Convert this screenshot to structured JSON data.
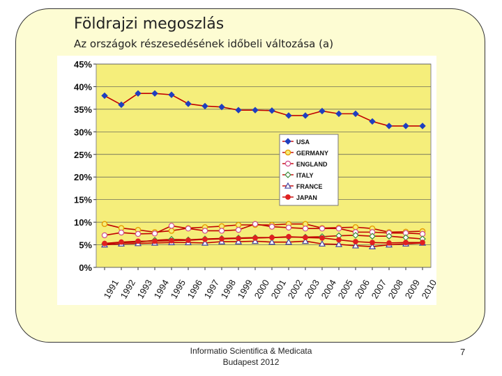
{
  "slide": {
    "title": "Földrajzi megoszlás",
    "subtitle": "Az országok részesedésének időbeli változása (a)",
    "footer_line1": "Informatio Scientifica & Medicata",
    "footer_line2": "Budapest 2012",
    "page_number": "7"
  },
  "colors": {
    "card_bg": "#fdfcd3",
    "plot_bg": "#f5ee7b",
    "frame_bg": "#ffffff",
    "line": "#c00000"
  },
  "chart_data": {
    "type": "line",
    "title": "",
    "xlabel": "",
    "ylabel": "",
    "ylim": [
      0,
      45
    ],
    "y_ticks": [
      "0%",
      "5%",
      "10%",
      "15%",
      "20%",
      "25%",
      "30%",
      "35%",
      "40%",
      "45%"
    ],
    "y_tick_values": [
      0,
      5,
      10,
      15,
      20,
      25,
      30,
      35,
      40,
      45
    ],
    "categories": [
      "1991",
      "1992",
      "1993",
      "1994",
      "1995",
      "1996",
      "1997",
      "1998",
      "1999",
      "2000",
      "2001",
      "2002",
      "2003",
      "2004",
      "2005",
      "2006",
      "2007",
      "2008",
      "2009",
      "2010"
    ],
    "grid": true,
    "legend_position": "right-middle",
    "series": [
      {
        "name": "USA",
        "marker": "diamond-filled",
        "marker_color": "#1f3fbf",
        "values": [
          38,
          36,
          38.5,
          38.5,
          38.2,
          36.2,
          35.7,
          35.5,
          34.8,
          34.8,
          34.7,
          33.6,
          33.6,
          34.6,
          34,
          34,
          32.3,
          31.3,
          31.3,
          31.3
        ]
      },
      {
        "name": "GERMANY",
        "marker": "circle-orange",
        "marker_color": "#e69b00",
        "values": [
          9.6,
          8.7,
          8.3,
          7.8,
          8.1,
          8.7,
          8.9,
          9.1,
          9.4,
          9.4,
          9.4,
          9.6,
          9.6,
          8.7,
          8.8,
          8.9,
          8.6,
          7.8,
          7.9,
          8.0
        ]
      },
      {
        "name": "ENGLAND",
        "marker": "circle-open",
        "marker_color": "#d04a8a",
        "values": [
          7.1,
          7.7,
          7.4,
          7.5,
          9.2,
          8.6,
          8.1,
          8.1,
          8.3,
          9.6,
          9.0,
          8.8,
          8.6,
          8.6,
          8.6,
          7.8,
          7.8,
          7.6,
          7.6,
          7.4
        ]
      },
      {
        "name": "ITALY",
        "marker": "diamond-open",
        "marker_color": "#3a8a3a",
        "values": [
          5.2,
          5.5,
          5.6,
          6.0,
          6.2,
          6.1,
          6.3,
          6.4,
          6.5,
          6.6,
          6.6,
          6.7,
          6.7,
          6.8,
          7.0,
          7.1,
          6.9,
          6.9,
          6.6,
          6.3
        ]
      },
      {
        "name": "FRANCE",
        "marker": "triangle-open",
        "marker_color": "#4040a0",
        "values": [
          5.0,
          5.2,
          5.3,
          5.4,
          5.5,
          5.5,
          5.4,
          5.7,
          5.7,
          5.8,
          5.6,
          5.6,
          5.8,
          5.2,
          5.1,
          4.8,
          4.6,
          5.0,
          5.2,
          5.4
        ]
      },
      {
        "name": "JAPAN",
        "marker": "circle-red",
        "marker_color": "#e02020",
        "values": [
          5.3,
          5.6,
          5.8,
          5.8,
          5.9,
          6.0,
          6.2,
          6.3,
          6.4,
          6.5,
          6.6,
          6.8,
          6.6,
          6.5,
          6.1,
          5.7,
          5.5,
          5.4,
          5.5,
          5.5
        ]
      }
    ]
  }
}
